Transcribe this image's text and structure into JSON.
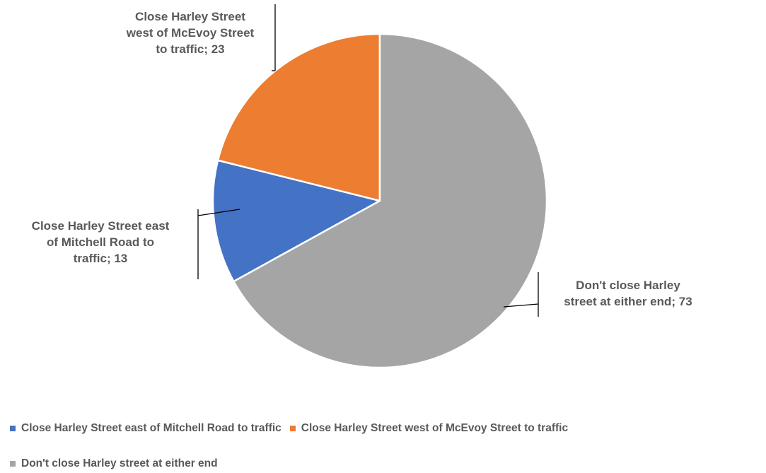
{
  "chart_data": {
    "type": "pie",
    "title": "",
    "slices": [
      {
        "name": "Close Harley Street east of Mitchell Road to traffic",
        "value": 13,
        "color": "#4472C4",
        "label_lines": [
          "Close Harley Street east",
          "of Mitchell Road to",
          "traffic; 13"
        ]
      },
      {
        "name": "Close Harley Street west of McEvoy Street to traffic",
        "value": 23,
        "color": "#ED7D31",
        "label_lines": [
          "Close Harley Street",
          "west of McEvoy Street",
          "to traffic; 23"
        ]
      },
      {
        "name": "Don't close Harley street at either end",
        "value": 73,
        "color": "#A5A5A5",
        "label_lines": [
          "Don't close Harley",
          "street at either end; 73"
        ]
      }
    ],
    "legend_position": "bottom"
  }
}
